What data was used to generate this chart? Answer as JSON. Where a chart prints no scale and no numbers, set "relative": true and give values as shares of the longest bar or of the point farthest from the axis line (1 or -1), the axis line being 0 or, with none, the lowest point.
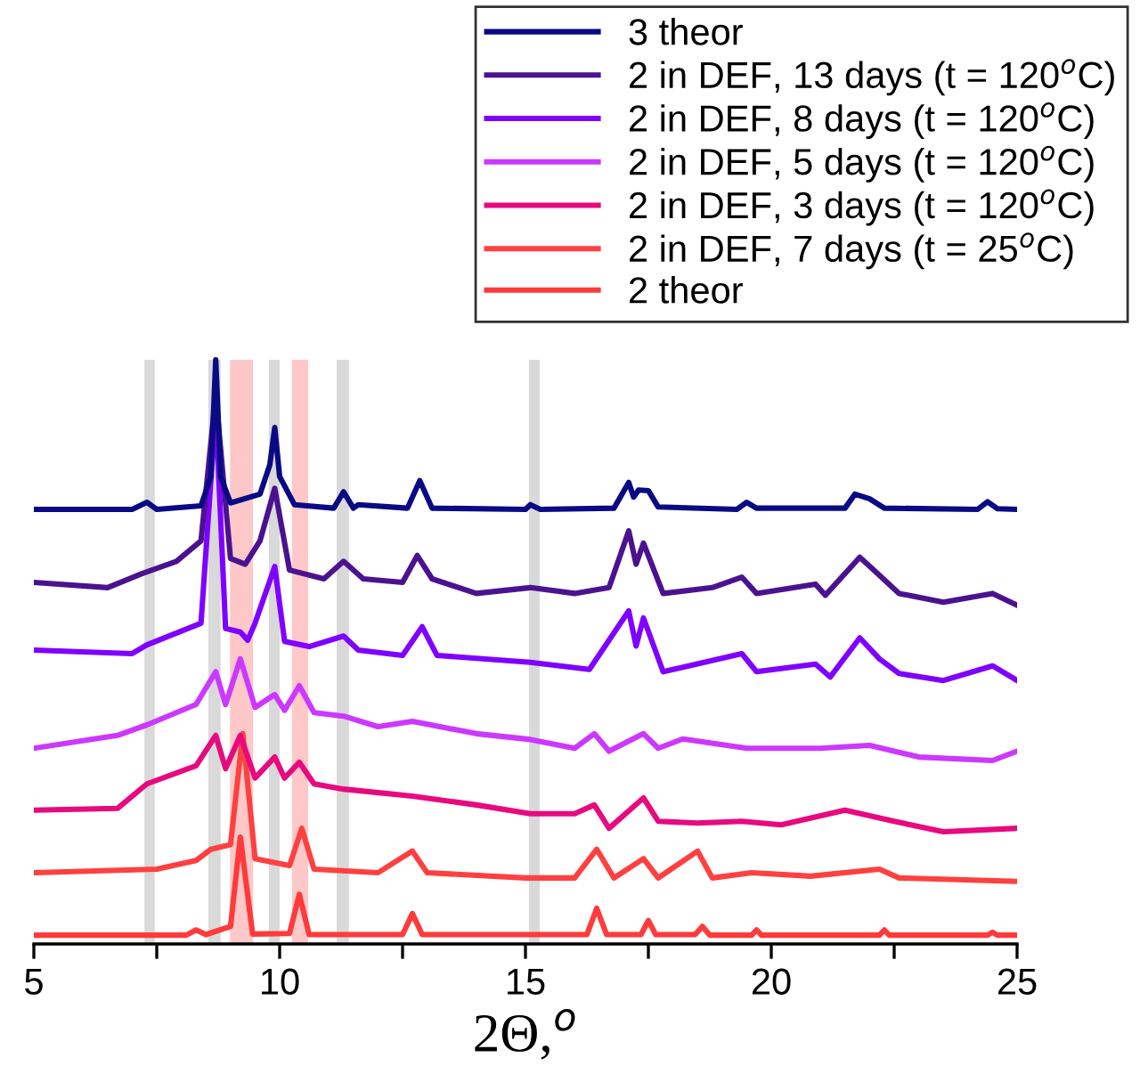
{
  "chart_data": {
    "type": "line",
    "relative": true,
    "xlabel": "2Θ,$^{o}$",
    "xlim": [
      5,
      25
    ],
    "xticks": [
      5,
      {
        "value": 7.5,
        "label": null
      },
      10,
      {
        "value": 12.5,
        "label": null
      },
      15,
      {
        "value": 17.5,
        "label": null
      },
      20,
      {
        "value": 22.5,
        "label": null
      },
      25
    ],
    "legend": "top right",
    "grid": false,
    "marker": "none",
    "line_style": "solid",
    "tick_labels": "x",
    "bands": [
      {
        "axis": "x",
        "from": 7.25,
        "to": 7.46,
        "color": "#d9d9d9"
      },
      {
        "axis": "x",
        "from": 8.55,
        "to": 8.8,
        "color": "#d9d9d9"
      },
      {
        "axis": "x",
        "from": 9.78,
        "to": 10.0,
        "color": "#d9d9d9"
      },
      {
        "axis": "x",
        "from": 11.16,
        "to": 11.41,
        "color": "#d9d9d9"
      },
      {
        "axis": "x",
        "from": 15.07,
        "to": 15.29,
        "color": "#d9d9d9"
      },
      {
        "axis": "x",
        "from": 8.99,
        "to": 9.46,
        "color": "#ffc8c8"
      },
      {
        "axis": "x",
        "from": 10.25,
        "to": 10.58,
        "color": "#ffc8c8"
      }
    ],
    "series": [
      {
        "name": "3 theor",
        "color": "#0a0a85",
        "x": [
          5,
          7.0,
          7.3,
          7.5,
          8.4,
          8.6,
          8.7,
          8.8,
          9.0,
          9.6,
          9.8,
          9.9,
          10.0,
          10.3,
          11.1,
          11.3,
          11.5,
          11.6,
          12.6,
          12.85,
          13.1,
          15.0,
          15.1,
          15.3,
          16.8,
          17.1,
          17.2,
          17.3,
          17.5,
          17.7,
          19.3,
          19.5,
          19.7,
          21.5,
          21.7,
          22.0,
          22.3,
          24.2,
          24.4,
          24.6,
          25
        ],
        "values": [
          0.744,
          0.744,
          0.756,
          0.744,
          0.75,
          0.8,
          1.0,
          0.8,
          0.755,
          0.77,
          0.82,
          0.884,
          0.8,
          0.752,
          0.746,
          0.774,
          0.746,
          0.752,
          0.746,
          0.793,
          0.746,
          0.744,
          0.752,
          0.744,
          0.746,
          0.79,
          0.765,
          0.777,
          0.776,
          0.748,
          0.744,
          0.756,
          0.746,
          0.746,
          0.77,
          0.762,
          0.746,
          0.744,
          0.757,
          0.745,
          0.744
        ]
      },
      {
        "name": "2 in DEF, 13 days (t = 120$^{o}$C)",
        "color": "#4b1290",
        "x": [
          5,
          6.5,
          7.2,
          7.9,
          8.4,
          8.7,
          9.0,
          9.3,
          9.6,
          9.9,
          10.2,
          10.9,
          11.3,
          11.7,
          12.5,
          12.8,
          13.1,
          14.0,
          15.1,
          16.0,
          16.7,
          17.1,
          17.25,
          17.4,
          17.8,
          18.8,
          19.4,
          19.7,
          20.9,
          21.1,
          21.8,
          22.2,
          22.6,
          23.5,
          24.5,
          25
        ],
        "values": [
          0.619,
          0.61,
          0.634,
          0.655,
          0.69,
          0.94,
          0.66,
          0.65,
          0.69,
          0.78,
          0.64,
          0.625,
          0.655,
          0.625,
          0.619,
          0.665,
          0.625,
          0.6,
          0.61,
          0.6,
          0.61,
          0.707,
          0.65,
          0.686,
          0.6,
          0.61,
          0.628,
          0.6,
          0.616,
          0.597,
          0.662,
          0.631,
          0.6,
          0.585,
          0.6,
          0.58
        ]
      },
      {
        "name": "2 in DEF, 8 days (t = 120$^{o}$C)",
        "color": "#7f00ff",
        "x": [
          5,
          7.0,
          7.3,
          8.4,
          8.7,
          8.9,
          9.2,
          9.35,
          9.5,
          9.9,
          10.1,
          10.6,
          11.3,
          11.6,
          12.5,
          12.9,
          13.2,
          15.1,
          16.3,
          17.1,
          17.25,
          17.4,
          17.8,
          19.4,
          19.7,
          20.9,
          21.2,
          21.8,
          22.2,
          22.6,
          23.5,
          24.5,
          25
        ],
        "values": [
          0.503,
          0.497,
          0.512,
          0.549,
          0.915,
          0.54,
          0.534,
          0.52,
          0.549,
          0.646,
          0.518,
          0.509,
          0.527,
          0.503,
          0.494,
          0.543,
          0.494,
          0.482,
          0.47,
          0.57,
          0.51,
          0.558,
          0.466,
          0.497,
          0.466,
          0.479,
          0.457,
          0.524,
          0.488,
          0.463,
          0.451,
          0.476,
          0.451
        ]
      },
      {
        "name": "2 in DEF, 5 days (t = 120$^{o}$C)",
        "color": "#cc38ff",
        "x": [
          5,
          6.7,
          7.3,
          8.3,
          8.7,
          8.9,
          9.2,
          9.5,
          9.9,
          10.1,
          10.4,
          10.7,
          11.3,
          12.0,
          12.7,
          14.0,
          15.1,
          16.0,
          16.4,
          16.7,
          17.4,
          17.7,
          18.2,
          19.5,
          21.0,
          22.0,
          23.0,
          24.5,
          25
        ],
        "values": [
          0.335,
          0.357,
          0.375,
          0.41,
          0.466,
          0.41,
          0.488,
          0.405,
          0.427,
          0.4,
          0.442,
          0.396,
          0.39,
          0.372,
          0.381,
          0.36,
          0.35,
          0.335,
          0.36,
          0.33,
          0.36,
          0.335,
          0.351,
          0.335,
          0.335,
          0.34,
          0.32,
          0.314,
          0.33
        ]
      },
      {
        "name": "2 in DEF, 3 days (t = 120$^{o}$C)",
        "color": "#e8097f",
        "x": [
          5,
          6.7,
          7.3,
          8.3,
          8.7,
          8.9,
          9.2,
          9.5,
          9.9,
          10.1,
          10.4,
          10.7,
          11.3,
          12.7,
          14.0,
          15.1,
          16.0,
          16.4,
          16.7,
          17.4,
          17.7,
          18.5,
          19.4,
          20.2,
          21.5,
          22.5,
          23.5,
          25
        ],
        "values": [
          0.229,
          0.232,
          0.274,
          0.305,
          0.357,
          0.3,
          0.357,
          0.284,
          0.32,
          0.284,
          0.311,
          0.274,
          0.265,
          0.253,
          0.238,
          0.223,
          0.223,
          0.238,
          0.198,
          0.25,
          0.21,
          0.207,
          0.21,
          0.204,
          0.229,
          0.21,
          0.192,
          0.198
        ]
      },
      {
        "name": "2 in DEF, 7 days (t = 25$^{o}$C)",
        "color": "#ff4040",
        "x": [
          5,
          7.5,
          8.3,
          8.6,
          9.0,
          9.25,
          9.5,
          10.2,
          10.45,
          10.7,
          12.0,
          12.7,
          13.0,
          15.0,
          16.0,
          16.45,
          16.8,
          17.4,
          17.7,
          18.5,
          18.8,
          19.6,
          20.8,
          22.2,
          22.6,
          25
        ],
        "values": [
          0.122,
          0.128,
          0.143,
          0.162,
          0.17,
          0.36,
          0.146,
          0.134,
          0.198,
          0.128,
          0.122,
          0.159,
          0.122,
          0.113,
          0.113,
          0.162,
          0.113,
          0.146,
          0.113,
          0.159,
          0.113,
          0.122,
          0.116,
          0.128,
          0.113,
          0.107
        ]
      },
      {
        "name": "2 theor",
        "color": "#ff3a3a",
        "x": [
          5,
          8.1,
          8.3,
          8.5,
          9.0,
          9.2,
          9.45,
          10.2,
          10.4,
          10.6,
          12.5,
          12.7,
          12.9,
          16.25,
          16.45,
          16.65,
          17.35,
          17.5,
          17.65,
          18.45,
          18.6,
          18.75,
          19.6,
          19.7,
          19.8,
          22.2,
          22.3,
          22.4,
          24.4,
          24.5,
          24.6,
          25
        ],
        "values": [
          0.015,
          0.015,
          0.024,
          0.016,
          0.03,
          0.183,
          0.017,
          0.018,
          0.085,
          0.016,
          0.016,
          0.052,
          0.016,
          0.016,
          0.061,
          0.016,
          0.016,
          0.04,
          0.016,
          0.016,
          0.03,
          0.015,
          0.015,
          0.024,
          0.015,
          0.015,
          0.024,
          0.015,
          0.015,
          0.02,
          0.015,
          0.015
        ]
      }
    ]
  }
}
